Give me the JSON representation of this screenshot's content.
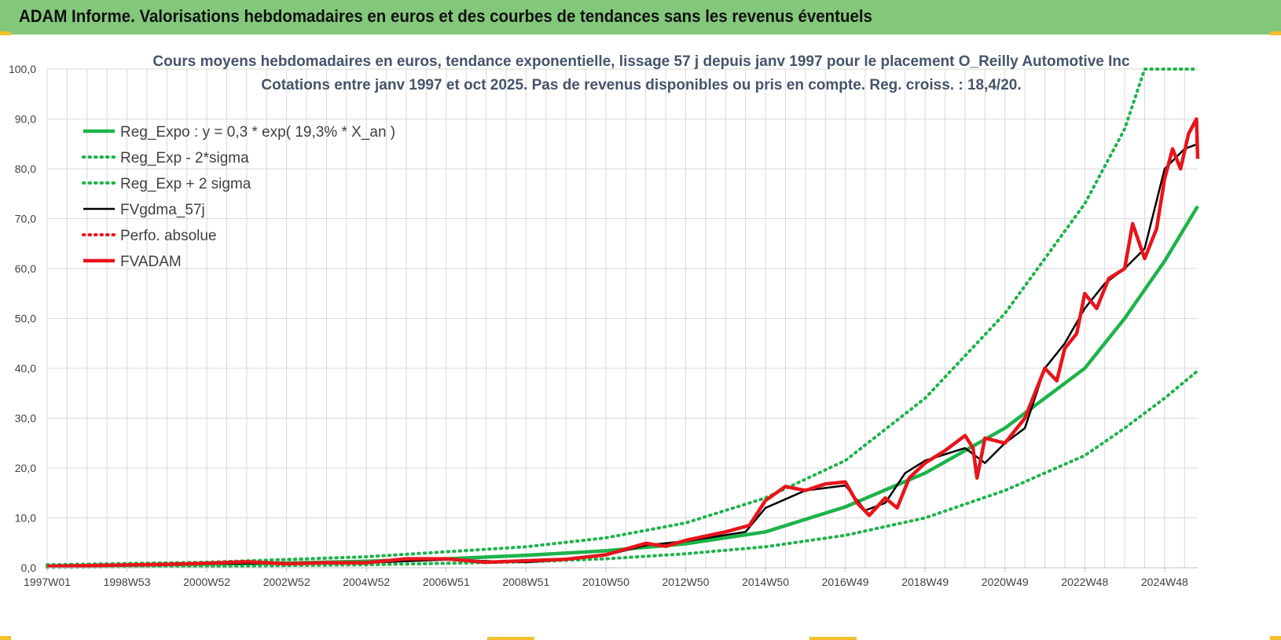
{
  "header": {
    "title": "ADAM Informe. Valorisations hebdomadaires en euros et des courbes de tendances sans les revenus éventuels"
  },
  "colors": {
    "header_bg": "#83c77b",
    "trend_green": "#1db34a",
    "price_red": "#e8141b",
    "smooth_black": "#000000",
    "gridline": "#d9d9d9",
    "title_text": "#44546a"
  },
  "chart_data": {
    "type": "line",
    "title": "Cours moyens hebdomadaires en euros, tendance exponentielle, lissage 57 j depuis janv 1997 pour le placement O_Reilly Automotive Inc",
    "subtitle": "Cotations entre janv 1997 et oct 2025. Pas de revenus disponibles ou pris en compte. Reg. croiss. : 18,4/20.",
    "xlabel": "",
    "ylabel": "",
    "x_axis_type": "year",
    "xlim": [
      1997.0,
      2025.83
    ],
    "ylim": [
      0,
      100
    ],
    "y_ticks": [
      "0,0",
      "10,0",
      "20,0",
      "30,0",
      "40,0",
      "50,0",
      "60,0",
      "70,0",
      "80,0",
      "90,0",
      "100,0"
    ],
    "x_ticks": [
      {
        "label": "1997W01",
        "x": 1997.0
      },
      {
        "label": "1998W53",
        "x": 1999.0
      },
      {
        "label": "2000W52",
        "x": 2001.0
      },
      {
        "label": "2002W52",
        "x": 2003.0
      },
      {
        "label": "2004W52",
        "x": 2005.0
      },
      {
        "label": "2006W51",
        "x": 2007.0
      },
      {
        "label": "2008W51",
        "x": 2009.0
      },
      {
        "label": "2010W50",
        "x": 2011.0
      },
      {
        "label": "2012W50",
        "x": 2013.0
      },
      {
        "label": "2014W50",
        "x": 2015.0
      },
      {
        "label": "2016W49",
        "x": 2017.0
      },
      {
        "label": "2018W49",
        "x": 2019.0
      },
      {
        "label": "2020W49",
        "x": 2021.0
      },
      {
        "label": "2022W48",
        "x": 2023.0
      },
      {
        "label": "2024W48",
        "x": 2025.0
      }
    ],
    "grid": true,
    "legend_position": "top-left",
    "series": [
      {
        "name": "Reg_Expo : y = 0,3 * exp( 19,3% *  X_an )",
        "style": "solid-thick",
        "color": "#1db34a",
        "x": [
          1997,
          1999,
          2001,
          2003,
          2005,
          2007,
          2009,
          2011,
          2013,
          2015,
          2017,
          2019,
          2021,
          2023,
          2024,
          2025,
          2025.83
        ],
        "y": [
          0.35,
          0.5,
          0.75,
          0.95,
          1.3,
          1.8,
          2.5,
          3.4,
          4.8,
          7.2,
          12.2,
          19,
          28,
          40,
          50,
          61.5,
          72.5
        ]
      },
      {
        "name": "Reg_Exp - 2*sigma",
        "style": "dotted",
        "color": "#1db34a",
        "x": [
          1997,
          2001,
          2005,
          2009,
          2011,
          2013,
          2015,
          2017,
          2019,
          2021,
          2023,
          2024,
          2025,
          2025.83
        ],
        "y": [
          0.1,
          0.3,
          0.6,
          1.2,
          1.8,
          2.8,
          4.2,
          6.5,
          10,
          15.5,
          22.5,
          28,
          34,
          39.5
        ]
      },
      {
        "name": "Reg_Exp + 2 sigma",
        "style": "dotted",
        "color": "#1db34a",
        "x": [
          1997,
          2001,
          2005,
          2009,
          2011,
          2013,
          2015,
          2017,
          2019,
          2021,
          2022,
          2023,
          2024,
          2024.5,
          2025,
          2025.83
        ],
        "y": [
          0.6,
          1.1,
          2.2,
          4.2,
          6,
          9,
          14,
          21.5,
          34,
          51,
          62,
          73,
          88,
          100,
          100,
          100
        ]
      },
      {
        "name": "FVgdma_57j",
        "style": "solid-thin",
        "color": "#000000",
        "x": [
          1997,
          2001,
          2003,
          2005,
          2007,
          2009,
          2010,
          2011,
          2012,
          2013,
          2014.5,
          2015,
          2016,
          2017,
          2017.5,
          2018,
          2018.5,
          2019,
          2020,
          2020.5,
          2021,
          2021.5,
          2022,
          2022.5,
          2023,
          2023.5,
          2024,
          2024.5,
          2025,
          2025.5,
          2025.83
        ],
        "y": [
          0.3,
          0.8,
          0.9,
          1,
          1.6,
          1.1,
          1.6,
          2.5,
          4.5,
          5.3,
          7.2,
          12,
          15.5,
          16.5,
          11.5,
          13,
          19,
          21.5,
          24,
          21,
          25,
          28,
          40,
          45,
          52,
          57,
          60,
          64,
          80,
          84,
          85
        ]
      },
      {
        "name": "Perfo. absolue",
        "style": "dotted",
        "color": "#e8141b",
        "x": [],
        "y": []
      },
      {
        "name": "FVADAM",
        "style": "solid-thick",
        "color": "#e8141b",
        "x": [
          1997,
          2000,
          2001,
          2002,
          2003,
          2004,
          2005,
          2006,
          2007,
          2008,
          2009,
          2010,
          2011,
          2012,
          2012.5,
          2013,
          2014,
          2014.6,
          2015,
          2015.5,
          2016,
          2016.5,
          2017,
          2017.3,
          2017.6,
          2018,
          2018.3,
          2018.6,
          2019,
          2019.5,
          2020,
          2020.2,
          2020.3,
          2020.5,
          2021,
          2021.5,
          2022,
          2022.3,
          2022.5,
          2022.8,
          2023,
          2023.3,
          2023.6,
          2024,
          2024.2,
          2024.5,
          2024.8,
          2025,
          2025.2,
          2025.4,
          2025.6,
          2025.8,
          2025.83
        ],
        "y": [
          0.3,
          0.7,
          0.9,
          1.2,
          0.8,
          1,
          1,
          1.8,
          1.8,
          1.1,
          1.4,
          1.7,
          2.6,
          4.9,
          4.3,
          5.5,
          7.2,
          8.5,
          13.5,
          16.3,
          15.5,
          16.8,
          17.2,
          13,
          10.5,
          14,
          12,
          18,
          21,
          23.5,
          26.5,
          24,
          18,
          26,
          25,
          30,
          40,
          37.5,
          44,
          47,
          55,
          52,
          58,
          60,
          69,
          62,
          68,
          78,
          84,
          80,
          87,
          90,
          82
        ]
      }
    ]
  }
}
